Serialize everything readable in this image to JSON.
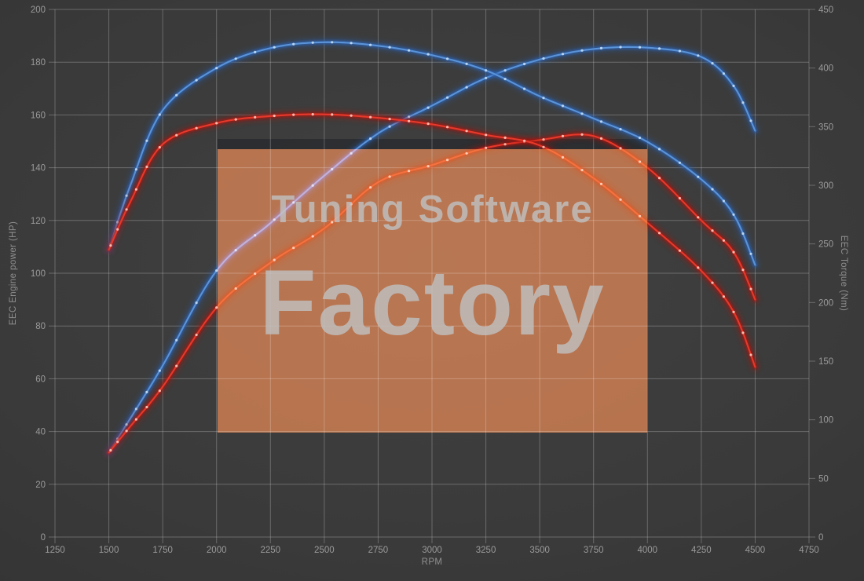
{
  "chart_data": {
    "type": "line",
    "title": "",
    "xlabel": "RPM",
    "ylabel_left": "EEC Engine power (HP)",
    "ylabel_right": "EEC Torque (Nm)",
    "grid": "on",
    "legend": "none",
    "x_range": [
      1250,
      4750
    ],
    "x_ticks": [
      1250,
      1500,
      1750,
      2000,
      2250,
      2500,
      2750,
      3000,
      3250,
      3500,
      3750,
      4000,
      4250,
      4500,
      4750
    ],
    "y_left_range": [
      0,
      200
    ],
    "y_left_ticks": [
      0,
      20,
      40,
      60,
      80,
      100,
      120,
      140,
      160,
      180,
      200
    ],
    "y_right_range": [
      0,
      450
    ],
    "y_right_ticks": [
      0,
      50,
      100,
      150,
      200,
      250,
      300,
      350,
      400,
      450
    ],
    "x": [
      1500,
      1600,
      1750,
      2000,
      2250,
      2500,
      2750,
      3000,
      3250,
      3500,
      3750,
      4000,
      4250,
      4400,
      4500
    ],
    "series": [
      {
        "name": "engine-power-tuned",
        "axis": "left",
        "unit": "HP",
        "color": "#5b93d8",
        "glow": "#2b62b4",
        "marker": "#bdd7f2",
        "values": [
          32,
          45,
          65,
          101,
          119,
          137,
          153,
          163.5,
          174,
          181,
          185,
          185.5,
          182,
          171,
          154
        ]
      },
      {
        "name": "engine-torque-tuned",
        "axis": "right",
        "unit": "Nm",
        "color": "#5b93d8",
        "glow": "#2b62b4",
        "marker": "#bdd7f2",
        "values": [
          245,
          300,
          364,
          400,
          417,
          422,
          419,
          411,
          398,
          376,
          357,
          337,
          305,
          275,
          232
        ]
      },
      {
        "name": "engine-power-original",
        "axis": "left",
        "unit": "HP",
        "color": "#e6392c",
        "glow": "#a81410",
        "marker": "#ffc0b4",
        "values": [
          32,
          42,
          57,
          87,
          104,
          117,
          134.5,
          141,
          147.5,
          150.5,
          152,
          140,
          120,
          108,
          90
        ]
      },
      {
        "name": "engine-torque-original",
        "axis": "right",
        "unit": "Nm",
        "color": "#e6392c",
        "glow": "#a81410",
        "marker": "#ffc0b4",
        "values": [
          245,
          286,
          335,
          353,
          359,
          360.5,
          357.5,
          352,
          343,
          334,
          306,
          268,
          227,
          192,
          145
        ]
      }
    ]
  },
  "watermark": {
    "line1": "Tuning Software",
    "line2": "Factory",
    "box_color": "#a04818",
    "text_color": "#c0c0c0"
  },
  "style": {
    "background": "#3a3a3a",
    "gridline": "rgba(205,205,205,0.33)",
    "tick_text": "#9a9a9a",
    "axis_title_text": "#8f8f8f"
  }
}
